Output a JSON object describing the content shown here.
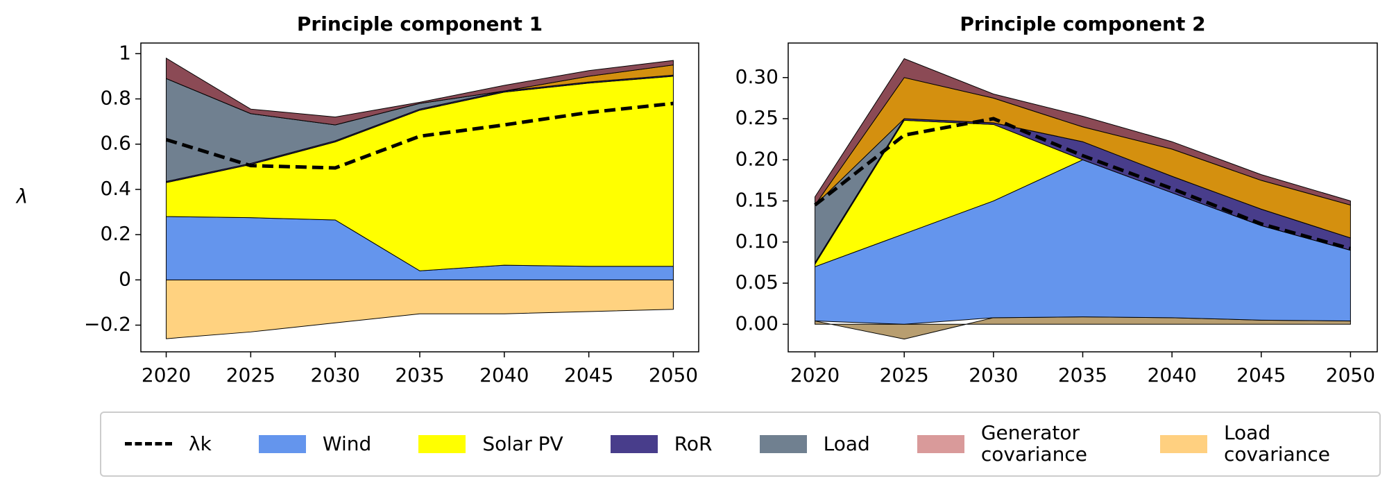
{
  "chart_data": [
    {
      "type": "area",
      "title": "Principle component 1",
      "y_label": "λ",
      "x": [
        2020,
        2025,
        2030,
        2035,
        2040,
        2045,
        2050
      ],
      "xlim": [
        2018.5,
        2051.5
      ],
      "xticks": [
        2020,
        2025,
        2030,
        2035,
        2040,
        2045,
        2050
      ],
      "ylim": [
        -0.318,
        1.047
      ],
      "yticks": [
        -0.2,
        0.0,
        0.2,
        0.4,
        0.6,
        0.8,
        1.0
      ],
      "series": [
        {
          "name": "Load covariance",
          "color": "#ffd280",
          "values": [
            -0.26,
            -0.23,
            -0.19,
            -0.15,
            -0.15,
            -0.14,
            -0.13
          ]
        },
        {
          "name": "Wind",
          "color": "#6495ed",
          "values": [
            0.28,
            0.275,
            0.265,
            0.04,
            0.065,
            0.06,
            0.06
          ]
        },
        {
          "name": "Solar PV",
          "color": "#ffff00",
          "values": [
            0.15,
            0.235,
            0.345,
            0.71,
            0.765,
            0.81,
            0.84
          ]
        },
        {
          "name": "RoR",
          "color": "#483d8b",
          "values": [
            0.005,
            0.005,
            0.005,
            0.005,
            0.005,
            0.005,
            0.005
          ]
        },
        {
          "name": "Load",
          "color": "#708090",
          "values": [
            0.455,
            0.22,
            0.07,
            0.025,
            0.0,
            0.0,
            0.0
          ]
        },
        {
          "name": "Load covariance",
          "color": "#d4900f",
          "values": [
            0.0,
            0.0,
            0.0,
            0.0,
            0.0,
            0.025,
            0.045
          ]
        },
        {
          "name": "Generator covariance",
          "color": "#8b4a55",
          "values": [
            0.09,
            0.02,
            0.035,
            0.005,
            0.025,
            0.025,
            0.02
          ]
        },
        {
          "name": "λk",
          "type": "line",
          "color": "#000000",
          "values": [
            0.62,
            0.505,
            0.495,
            0.635,
            0.685,
            0.74,
            0.78
          ]
        }
      ]
    },
    {
      "type": "area",
      "title": "Principle component 2",
      "x": [
        2020,
        2025,
        2030,
        2035,
        2040,
        2045,
        2050
      ],
      "xlim": [
        2018.5,
        2051.5
      ],
      "xticks": [
        2020,
        2025,
        2030,
        2035,
        2040,
        2045,
        2050
      ],
      "ylim": [
        -0.0335,
        0.342
      ],
      "yticks": [
        {
          "value": 0,
          "label": "0.00"
        },
        0.05,
        {
          "value": 0.1,
          "label": "0.10"
        },
        0.15,
        {
          "value": 0.2,
          "label": "0.20"
        },
        0.25,
        {
          "value": 0.3,
          "label": "0.30"
        }
      ],
      "series": [
        {
          "name": "Load covariance",
          "color": "#b89e70",
          "values": [
            0.004,
            -0.018,
            0.008,
            0.009,
            0.008,
            0.005,
            0.004
          ]
        },
        {
          "name": "Wind",
          "color": "#6495ed",
          "values": [
            0.066,
            0.11,
            0.142,
            0.191,
            0.152,
            0.115,
            0.086
          ]
        },
        {
          "name": "Solar PV",
          "color": "#ffff00",
          "values": [
            0.003,
            0.138,
            0.093,
            0.0,
            0.0,
            0.0,
            0.0
          ]
        },
        {
          "name": "RoR",
          "color": "#483d8b",
          "values": [
            0.002,
            0.002,
            0.002,
            0.022,
            0.02,
            0.02,
            0.015
          ]
        },
        {
          "name": "Load",
          "color": "#708090",
          "values": [
            0.07,
            0.0,
            0.0,
            0.0,
            0.0,
            0.0,
            0.0
          ]
        },
        {
          "name": "Load covariance",
          "color": "#d4900f",
          "values": [
            0.0,
            0.05,
            0.03,
            0.018,
            0.033,
            0.035,
            0.04
          ]
        },
        {
          "name": "Generator covariance",
          "color": "#8b4a55",
          "values": [
            0.01,
            0.023,
            0.005,
            0.013,
            0.009,
            0.007,
            0.005
          ]
        },
        {
          "name": "λk",
          "type": "line",
          "color": "#000000",
          "values": [
            0.145,
            0.23,
            0.25,
            0.205,
            0.165,
            0.122,
            0.092
          ]
        }
      ]
    }
  ],
  "legend": [
    {
      "name": "λk",
      "type": "line",
      "color": "#000000"
    },
    {
      "name": "Wind",
      "color": "#6495ed"
    },
    {
      "name": "Solar PV",
      "color": "#ffff00"
    },
    {
      "name": "RoR",
      "color": "#483d8b"
    },
    {
      "name": "Load",
      "color": "#708090"
    },
    {
      "name": "Generator covariance",
      "color": "#d99a9a"
    },
    {
      "name": "Load covariance",
      "color": "#ffd080"
    }
  ]
}
